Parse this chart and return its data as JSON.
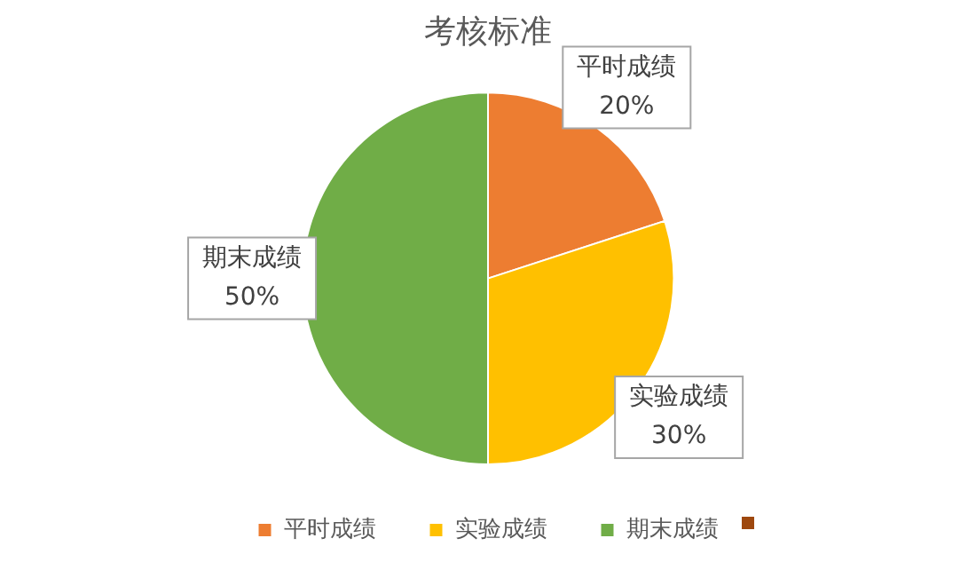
{
  "chart_data": {
    "type": "pie",
    "title": "考核标准",
    "categories": [
      "平时成绩",
      "实验成绩",
      "期末成绩"
    ],
    "values": [
      20,
      30,
      50
    ],
    "value_labels": [
      "20%",
      "30%",
      "50%"
    ],
    "colors": [
      "#ed7d31",
      "#ffc000",
      "#70ad47"
    ],
    "legend": "bottom"
  }
}
